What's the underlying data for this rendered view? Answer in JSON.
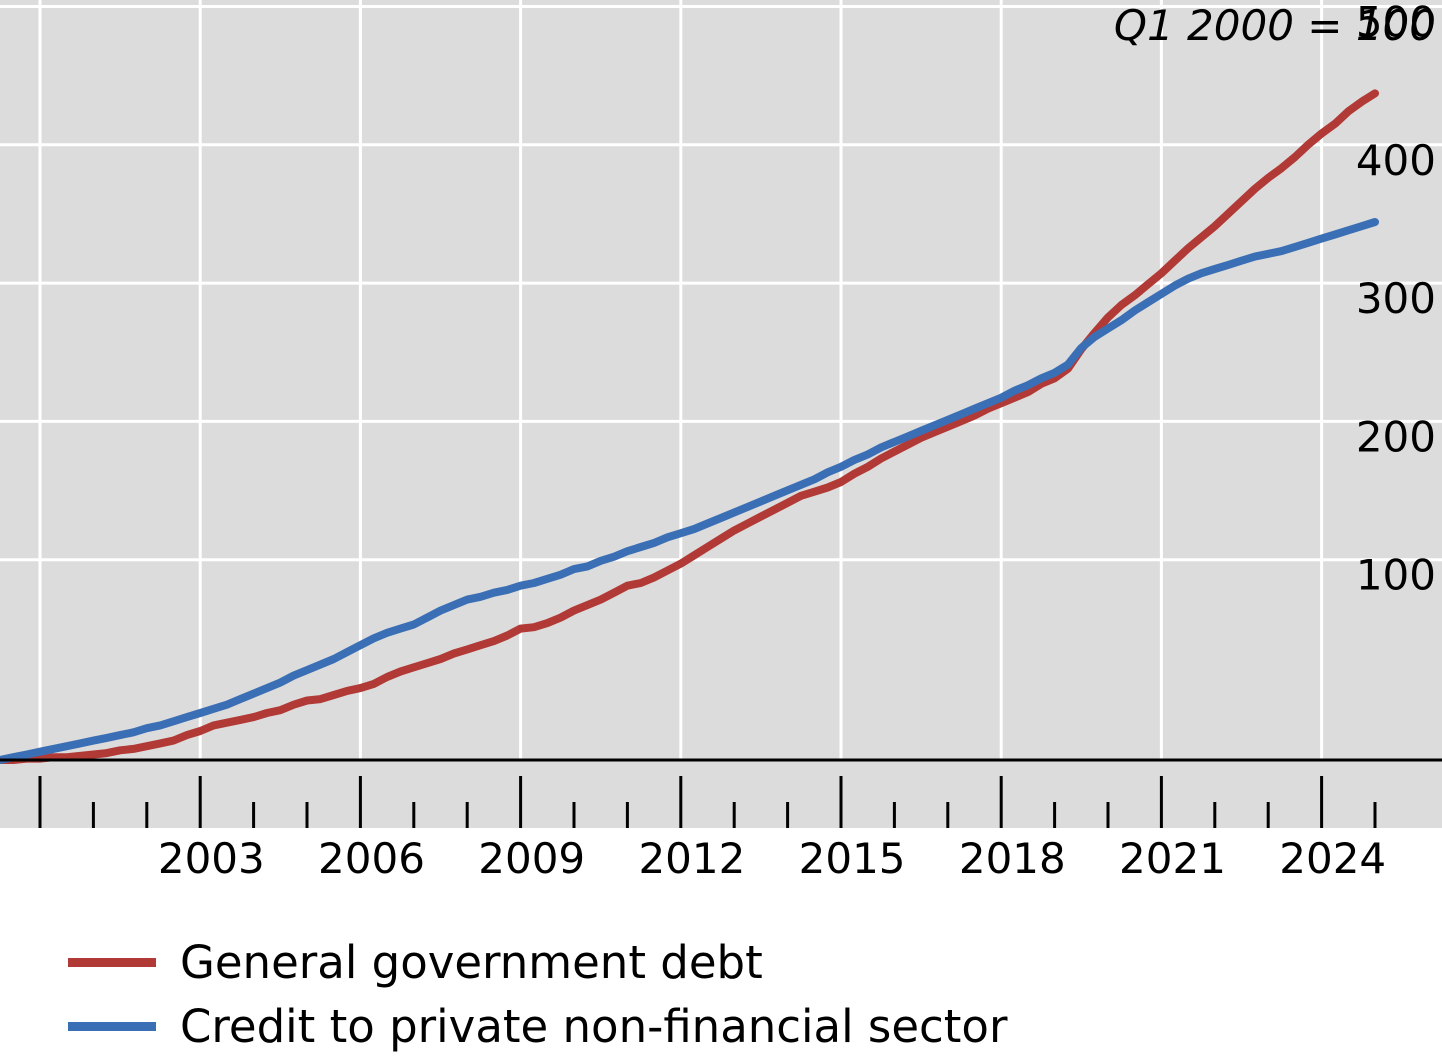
{
  "chart_data": {
    "type": "line",
    "unit_note": "Q1 2000 = 100",
    "x_ticks": [
      "2003",
      "2006",
      "2009",
      "2012",
      "2015",
      "2018",
      "2021",
      "2024"
    ],
    "y_ticks": [
      "100",
      "200",
      "300",
      "400",
      "500"
    ],
    "xlim": [
      2000,
      2027
    ],
    "ylim": [
      0,
      550
    ],
    "grid": true,
    "legend_position": "bottom-left",
    "series": [
      {
        "name": "General government debt",
        "color": "#b23a36",
        "points": [
          [
            2000.0,
            0
          ],
          [
            2000.25,
            0
          ],
          [
            2000.5,
            1
          ],
          [
            2000.75,
            1
          ],
          [
            2001.0,
            2
          ],
          [
            2001.25,
            2
          ],
          [
            2001.5,
            3
          ],
          [
            2001.75,
            4
          ],
          [
            2002.0,
            5
          ],
          [
            2002.25,
            7
          ],
          [
            2002.5,
            8
          ],
          [
            2002.75,
            10
          ],
          [
            2003.0,
            12
          ],
          [
            2003.25,
            14
          ],
          [
            2003.5,
            18
          ],
          [
            2003.75,
            21
          ],
          [
            2004.0,
            25
          ],
          [
            2004.25,
            27
          ],
          [
            2004.5,
            29
          ],
          [
            2004.75,
            31
          ],
          [
            2005.0,
            34
          ],
          [
            2005.25,
            36
          ],
          [
            2005.5,
            40
          ],
          [
            2005.75,
            43
          ],
          [
            2006.0,
            44
          ],
          [
            2006.25,
            47
          ],
          [
            2006.5,
            50
          ],
          [
            2006.75,
            52
          ],
          [
            2007.0,
            55
          ],
          [
            2007.25,
            60
          ],
          [
            2007.5,
            64
          ],
          [
            2007.75,
            67
          ],
          [
            2008.0,
            70
          ],
          [
            2008.25,
            73
          ],
          [
            2008.5,
            77
          ],
          [
            2008.75,
            80
          ],
          [
            2009.0,
            83
          ],
          [
            2009.25,
            86
          ],
          [
            2009.5,
            90
          ],
          [
            2009.75,
            95
          ],
          [
            2010.0,
            96
          ],
          [
            2010.25,
            99
          ],
          [
            2010.5,
            103
          ],
          [
            2010.75,
            108
          ],
          [
            2011.0,
            112
          ],
          [
            2011.25,
            116
          ],
          [
            2011.5,
            121
          ],
          [
            2011.75,
            126
          ],
          [
            2012.0,
            128
          ],
          [
            2012.25,
            132
          ],
          [
            2012.5,
            137
          ],
          [
            2012.75,
            142
          ],
          [
            2013.0,
            148
          ],
          [
            2013.25,
            154
          ],
          [
            2013.5,
            160
          ],
          [
            2013.75,
            166
          ],
          [
            2014.0,
            171
          ],
          [
            2014.25,
            176
          ],
          [
            2014.5,
            181
          ],
          [
            2014.75,
            186
          ],
          [
            2015.0,
            191
          ],
          [
            2015.25,
            194
          ],
          [
            2015.5,
            197
          ],
          [
            2015.75,
            201
          ],
          [
            2016.0,
            207
          ],
          [
            2016.25,
            212
          ],
          [
            2016.5,
            218
          ],
          [
            2016.75,
            223
          ],
          [
            2017.0,
            228
          ],
          [
            2017.25,
            233
          ],
          [
            2017.5,
            237
          ],
          [
            2017.75,
            241
          ],
          [
            2018.0,
            245
          ],
          [
            2018.25,
            249
          ],
          [
            2018.5,
            254
          ],
          [
            2018.75,
            258
          ],
          [
            2019.0,
            262
          ],
          [
            2019.25,
            266
          ],
          [
            2019.5,
            272
          ],
          [
            2019.75,
            276
          ],
          [
            2020.0,
            283
          ],
          [
            2020.25,
            297
          ],
          [
            2020.5,
            309
          ],
          [
            2020.75,
            320
          ],
          [
            2021.0,
            329
          ],
          [
            2021.25,
            336
          ],
          [
            2021.5,
            344
          ],
          [
            2021.75,
            352
          ],
          [
            2022.0,
            361
          ],
          [
            2022.25,
            370
          ],
          [
            2022.5,
            378
          ],
          [
            2022.75,
            386
          ],
          [
            2023.0,
            395
          ],
          [
            2023.25,
            404
          ],
          [
            2023.5,
            413
          ],
          [
            2023.75,
            421
          ],
          [
            2024.0,
            428
          ],
          [
            2024.25,
            436
          ],
          [
            2024.5,
            445
          ],
          [
            2024.75,
            453
          ],
          [
            2025.0,
            460
          ],
          [
            2025.25,
            469
          ],
          [
            2025.5,
            476
          ],
          [
            2025.75,
            482
          ]
        ]
      },
      {
        "name": "Credit to private non-financial sector",
        "color": "#3b6fb5",
        "points": [
          [
            2000.0,
            0
          ],
          [
            2000.25,
            2
          ],
          [
            2000.5,
            4
          ],
          [
            2000.75,
            6
          ],
          [
            2001.0,
            8
          ],
          [
            2001.25,
            10
          ],
          [
            2001.5,
            12
          ],
          [
            2001.75,
            14
          ],
          [
            2002.0,
            16
          ],
          [
            2002.25,
            18
          ],
          [
            2002.5,
            20
          ],
          [
            2002.75,
            23
          ],
          [
            2003.0,
            25
          ],
          [
            2003.25,
            28
          ],
          [
            2003.5,
            31
          ],
          [
            2003.75,
            34
          ],
          [
            2004.0,
            37
          ],
          [
            2004.25,
            40
          ],
          [
            2004.5,
            44
          ],
          [
            2004.75,
            48
          ],
          [
            2005.0,
            52
          ],
          [
            2005.25,
            56
          ],
          [
            2005.5,
            61
          ],
          [
            2005.75,
            65
          ],
          [
            2006.0,
            69
          ],
          [
            2006.25,
            73
          ],
          [
            2006.5,
            78
          ],
          [
            2006.75,
            83
          ],
          [
            2007.0,
            88
          ],
          [
            2007.25,
            92
          ],
          [
            2007.5,
            95
          ],
          [
            2007.75,
            98
          ],
          [
            2008.0,
            103
          ],
          [
            2008.25,
            108
          ],
          [
            2008.5,
            112
          ],
          [
            2008.75,
            116
          ],
          [
            2009.0,
            118
          ],
          [
            2009.25,
            121
          ],
          [
            2009.5,
            123
          ],
          [
            2009.75,
            126
          ],
          [
            2010.0,
            128
          ],
          [
            2010.25,
            131
          ],
          [
            2010.5,
            134
          ],
          [
            2010.75,
            138
          ],
          [
            2011.0,
            140
          ],
          [
            2011.25,
            144
          ],
          [
            2011.5,
            147
          ],
          [
            2011.75,
            151
          ],
          [
            2012.0,
            154
          ],
          [
            2012.25,
            157
          ],
          [
            2012.5,
            161
          ],
          [
            2012.75,
            164
          ],
          [
            2013.0,
            167
          ],
          [
            2013.25,
            171
          ],
          [
            2013.5,
            175
          ],
          [
            2013.75,
            179
          ],
          [
            2014.0,
            183
          ],
          [
            2014.25,
            187
          ],
          [
            2014.5,
            191
          ],
          [
            2014.75,
            195
          ],
          [
            2015.0,
            199
          ],
          [
            2015.25,
            203
          ],
          [
            2015.5,
            208
          ],
          [
            2015.75,
            212
          ],
          [
            2016.0,
            217
          ],
          [
            2016.25,
            221
          ],
          [
            2016.5,
            226
          ],
          [
            2016.75,
            230
          ],
          [
            2017.0,
            234
          ],
          [
            2017.25,
            238
          ],
          [
            2017.5,
            242
          ],
          [
            2017.75,
            246
          ],
          [
            2018.0,
            250
          ],
          [
            2018.25,
            254
          ],
          [
            2018.5,
            258
          ],
          [
            2018.75,
            262
          ],
          [
            2019.0,
            267
          ],
          [
            2019.25,
            271
          ],
          [
            2019.5,
            276
          ],
          [
            2019.75,
            280
          ],
          [
            2020.0,
            286
          ],
          [
            2020.25,
            298
          ],
          [
            2020.5,
            306
          ],
          [
            2020.75,
            312
          ],
          [
            2021.0,
            318
          ],
          [
            2021.25,
            325
          ],
          [
            2021.5,
            331
          ],
          [
            2021.75,
            337
          ],
          [
            2022.0,
            343
          ],
          [
            2022.25,
            348
          ],
          [
            2022.5,
            352
          ],
          [
            2022.75,
            355
          ],
          [
            2023.0,
            358
          ],
          [
            2023.25,
            361
          ],
          [
            2023.5,
            364
          ],
          [
            2023.75,
            366
          ],
          [
            2024.0,
            368
          ],
          [
            2024.25,
            371
          ],
          [
            2024.5,
            374
          ],
          [
            2024.75,
            377
          ],
          [
            2025.0,
            380
          ],
          [
            2025.25,
            383
          ],
          [
            2025.5,
            386
          ],
          [
            2025.75,
            389
          ]
        ]
      }
    ]
  }
}
